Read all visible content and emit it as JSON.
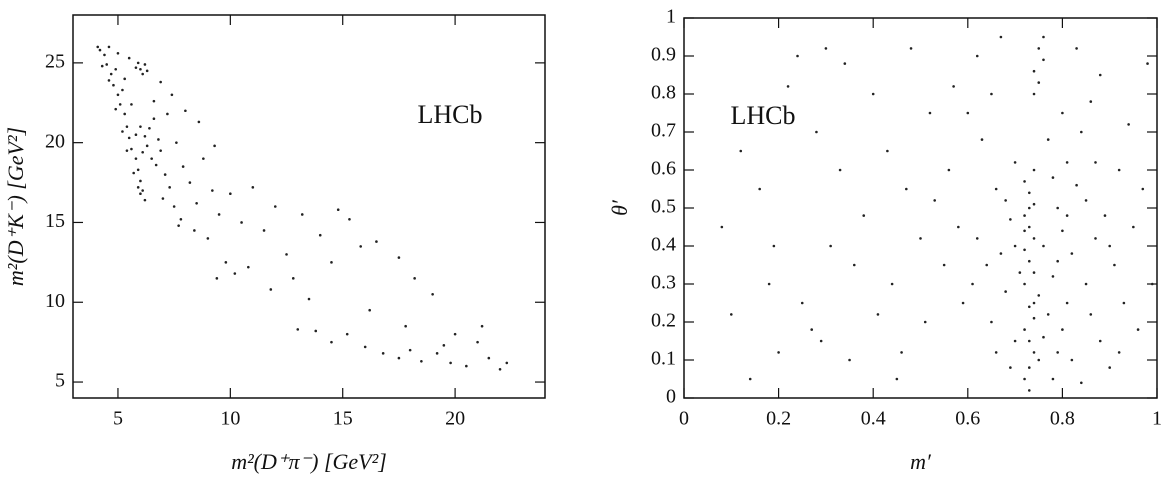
{
  "chart_data": [
    {
      "type": "scatter",
      "x_label": "m²(D⁺π⁻) [GeV²]",
      "y_label": "m²(D⁺K⁻) [GeV²]",
      "annotation": "LHCb",
      "color": "#222222",
      "xlim": [
        3,
        24
      ],
      "xticks": [
        5,
        10,
        15,
        20
      ],
      "ylim": [
        4,
        28
      ],
      "yticks": [
        5,
        10,
        15,
        20,
        25
      ],
      "x": [
        4.2,
        4.4,
        4.5,
        4.7,
        4.8,
        5.0,
        5.1,
        5.3,
        5.4,
        5.5,
        5.6,
        5.8,
        5.9,
        6.0,
        6.1,
        6.2,
        4.3,
        4.6,
        4.9,
        5.2,
        5.4,
        5.7,
        5.9,
        6.0,
        4.1,
        4.6,
        5.0,
        5.5,
        5.9,
        6.0,
        6.2,
        6.1,
        5.8,
        6.3,
        6.0,
        6.2,
        6.3,
        6.1,
        6.4,
        6.5,
        5.8,
        6.6,
        6.8,
        6.7,
        6.9,
        7.1,
        7.3,
        7.0,
        7.5,
        7.8,
        7.2,
        7.6,
        7.9,
        8.2,
        8.5,
        8.0,
        8.8,
        9.2,
        9.5,
        9.0,
        8.4,
        7.7,
        10.0,
        10.5,
        11.0,
        11.5,
        12.0,
        9.8,
        10.2,
        9.4,
        10.8,
        12.5,
        13.2,
        14.0,
        14.8,
        15.3,
        15.8,
        16.5,
        14.5,
        17.5,
        18.2,
        19.0,
        13.0,
        13.8,
        14.5,
        15.2,
        16.0,
        16.8,
        17.5,
        18.0,
        18.5,
        19.2,
        19.8,
        20.5,
        21.0,
        21.5,
        22.0,
        21.2,
        20.0,
        17.8,
        19.5,
        22.3,
        16.2,
        11.8,
        12.8,
        13.5,
        8.6,
        9.3,
        7.4,
        6.9,
        6.6,
        5.3,
        5.6,
        5.2,
        4.9
      ],
      "values": [
        25.8,
        25.5,
        24.9,
        24.3,
        23.6,
        23.0,
        22.4,
        21.8,
        21.0,
        20.3,
        19.6,
        19.0,
        18.3,
        17.6,
        17.0,
        16.4,
        24.8,
        23.9,
        22.1,
        20.7,
        19.5,
        18.1,
        17.2,
        16.8,
        26.0,
        26.0,
        25.6,
        25.3,
        25.0,
        24.6,
        24.9,
        24.3,
        24.7,
        24.5,
        21.0,
        20.4,
        19.8,
        19.4,
        20.9,
        19.0,
        20.5,
        21.5,
        20.2,
        18.6,
        19.5,
        18.0,
        17.2,
        16.5,
        16.0,
        15.2,
        21.8,
        20.0,
        18.5,
        17.5,
        16.2,
        22.0,
        19.0,
        17.0,
        15.5,
        14.0,
        14.5,
        14.8,
        16.8,
        15.0,
        17.2,
        14.5,
        16.0,
        12.5,
        11.8,
        11.5,
        12.2,
        13.0,
        15.5,
        14.2,
        15.8,
        15.2,
        13.5,
        13.8,
        12.5,
        12.8,
        11.5,
        10.5,
        8.3,
        8.2,
        7.5,
        8.0,
        7.2,
        6.8,
        6.5,
        7.0,
        6.3,
        6.8,
        6.2,
        6.0,
        7.5,
        6.5,
        5.8,
        8.5,
        8.0,
        8.5,
        7.3,
        6.2,
        9.5,
        10.8,
        11.5,
        10.2,
        21.3,
        19.8,
        23.0,
        23.8,
        22.6,
        24.0,
        22.4,
        23.3,
        24.6
      ]
    },
    {
      "type": "scatter",
      "x_label": "m′",
      "y_label": "θ′",
      "annotation": "LHCb",
      "color": "#222222",
      "xlim": [
        0,
        1
      ],
      "xticks": [
        0,
        0.2,
        0.4,
        0.6,
        0.8,
        1
      ],
      "ylim": [
        0,
        1
      ],
      "yticks": [
        0,
        0.1,
        0.2,
        0.3,
        0.4,
        0.5,
        0.6,
        0.7,
        0.8,
        0.9,
        1
      ],
      "x": [
        0.72,
        0.73,
        0.74,
        0.73,
        0.72,
        0.74,
        0.73,
        0.75,
        0.72,
        0.74,
        0.73,
        0.72,
        0.74,
        0.73,
        0.72,
        0.74,
        0.73,
        0.72,
        0.74,
        0.75,
        0.74,
        0.76,
        0.75,
        0.74,
        0.76,
        0.73,
        0.75,
        0.76,
        0.74,
        0.73,
        0.72,
        0.62,
        0.64,
        0.66,
        0.68,
        0.69,
        0.7,
        0.67,
        0.65,
        0.63,
        0.61,
        0.78,
        0.79,
        0.8,
        0.81,
        0.78,
        0.82,
        0.8,
        0.79,
        0.83,
        0.81,
        0.84,
        0.86,
        0.85,
        0.87,
        0.88,
        0.89,
        0.9,
        0.91,
        0.92,
        0.93,
        0.94,
        0.95,
        0.96,
        0.97,
        0.98,
        0.99,
        0.86,
        0.88,
        0.83,
        0.8,
        0.77,
        0.78,
        0.82,
        0.84,
        0.76,
        0.77,
        0.79,
        0.81,
        0.85,
        0.87,
        0.9,
        0.92,
        0.7,
        0.69,
        0.66,
        0.71,
        0.68,
        0.7,
        0.58,
        0.56,
        0.59,
        0.55,
        0.6,
        0.57,
        0.53,
        0.62,
        0.65,
        0.67,
        0.1,
        0.12,
        0.14,
        0.16,
        0.18,
        0.2,
        0.22,
        0.24,
        0.25,
        0.27,
        0.28,
        0.3,
        0.31,
        0.33,
        0.35,
        0.36,
        0.38,
        0.4,
        0.41,
        0.43,
        0.44,
        0.46,
        0.47,
        0.48,
        0.5,
        0.51,
        0.52,
        0.34,
        0.19,
        0.29,
        0.45,
        0.08
      ],
      "values": [
        0.05,
        0.08,
        0.12,
        0.15,
        0.18,
        0.21,
        0.24,
        0.27,
        0.3,
        0.33,
        0.36,
        0.39,
        0.42,
        0.45,
        0.48,
        0.51,
        0.54,
        0.57,
        0.6,
        0.83,
        0.86,
        0.89,
        0.92,
        0.8,
        0.95,
        0.02,
        0.1,
        0.16,
        0.25,
        0.5,
        0.44,
        0.42,
        0.35,
        0.55,
        0.28,
        0.47,
        0.62,
        0.38,
        0.2,
        0.68,
        0.3,
        0.05,
        0.12,
        0.18,
        0.25,
        0.32,
        0.38,
        0.44,
        0.5,
        0.56,
        0.62,
        0.7,
        0.22,
        0.3,
        0.42,
        0.15,
        0.48,
        0.08,
        0.35,
        0.6,
        0.25,
        0.72,
        0.45,
        0.18,
        0.55,
        0.88,
        0.3,
        0.78,
        0.85,
        0.92,
        0.75,
        0.68,
        0.58,
        0.1,
        0.04,
        0.4,
        0.22,
        0.36,
        0.48,
        0.52,
        0.62,
        0.4,
        0.12,
        0.15,
        0.08,
        0.12,
        0.33,
        0.52,
        0.4,
        0.45,
        0.6,
        0.25,
        0.35,
        0.75,
        0.82,
        0.52,
        0.9,
        0.8,
        0.95,
        0.22,
        0.65,
        0.05,
        0.55,
        0.3,
        0.12,
        0.82,
        0.9,
        0.25,
        0.18,
        0.7,
        0.92,
        0.4,
        0.6,
        0.1,
        0.35,
        0.48,
        0.8,
        0.22,
        0.65,
        0.3,
        0.12,
        0.55,
        0.92,
        0.42,
        0.2,
        0.75,
        0.88,
        0.4,
        0.15,
        0.05,
        0.45
      ]
    }
  ]
}
